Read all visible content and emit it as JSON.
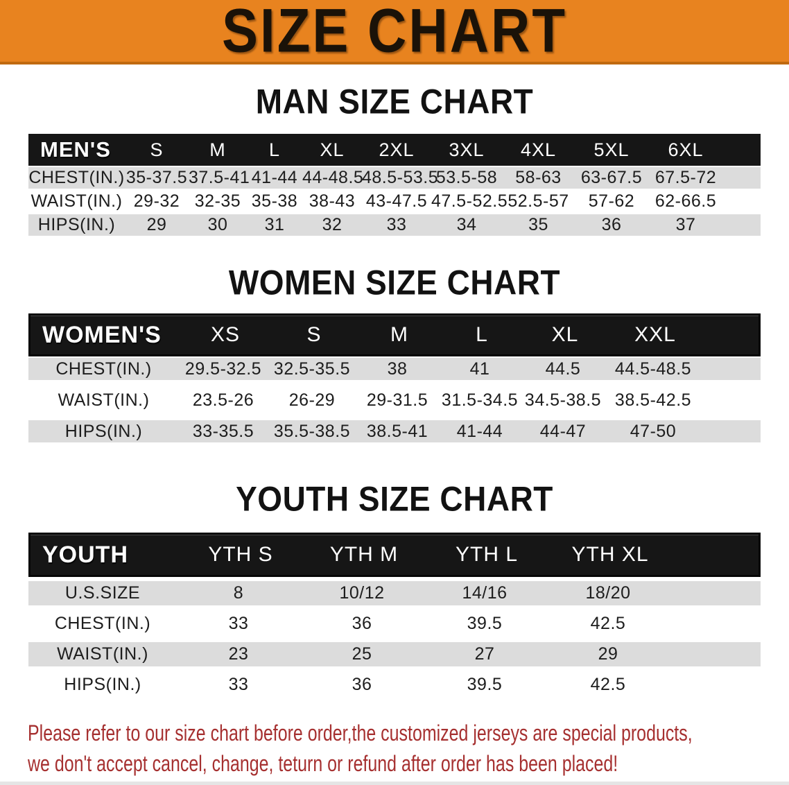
{
  "banner": {
    "title": "SIZE CHART"
  },
  "sections": [
    {
      "heading": "MAN SIZE CHART",
      "table": {
        "header_label": "MEN'S",
        "columns": [
          "S",
          "M",
          "L",
          "XL",
          "2XL",
          "3XL",
          "4XL",
          "5XL",
          "6XL"
        ],
        "rows": [
          {
            "label": "CHEST(IN.)",
            "values": [
              "35-37.5",
              "37.5-41",
              "41-44",
              "44-48.5",
              "48.5-53.5",
              "53.5-58",
              "58-63",
              "63-67.5",
              "67.5-72"
            ]
          },
          {
            "label": "WAIST(IN.)",
            "values": [
              "29-32",
              "32-35",
              "35-38",
              "38-43",
              "43-47.5",
              "47.5-52.5",
              "52.5-57",
              "57-62",
              "62-66.5"
            ]
          },
          {
            "label": "HIPS(IN.)",
            "values": [
              "29",
              "30",
              "31",
              "32",
              "33",
              "34",
              "35",
              "36",
              "37"
            ]
          }
        ]
      }
    },
    {
      "heading": "WOMEN SIZE CHART",
      "table": {
        "header_label": "WOMEN'S",
        "columns": [
          "XS",
          "S",
          "M",
          "L",
          "XL",
          "XXL"
        ],
        "rows": [
          {
            "label": "CHEST(IN.)",
            "values": [
              "29.5-32.5",
              "32.5-35.5",
              "38",
              "41",
              "44.5",
              "44.5-48.5"
            ]
          },
          {
            "label": "WAIST(IN.)",
            "values": [
              "23.5-26",
              "26-29",
              "29-31.5",
              "31.5-34.5",
              "34.5-38.5",
              "38.5-42.5"
            ]
          },
          {
            "label": "HIPS(IN.)",
            "values": [
              "33-35.5",
              "35.5-38.5",
              "38.5-41",
              "41-44",
              "44-47",
              "47-50"
            ]
          }
        ]
      }
    },
    {
      "heading": "YOUTH SIZE CHART",
      "table": {
        "header_label": "YOUTH",
        "columns": [
          "YTH S",
          "YTH M",
          "YTH L",
          "YTH XL"
        ],
        "rows": [
          {
            "label": "U.S.SIZE",
            "values": [
              "8",
              "10/12",
              "14/16",
              "18/20"
            ]
          },
          {
            "label": "CHEST(IN.)",
            "values": [
              "33",
              "36",
              "39.5",
              "42.5"
            ]
          },
          {
            "label": "WAIST(IN.)",
            "values": [
              "23",
              "25",
              "27",
              "29"
            ]
          },
          {
            "label": "HIPS(IN.)",
            "values": [
              "33",
              "36",
              "39.5",
              "42.5"
            ]
          }
        ]
      }
    }
  ],
  "footer": {
    "line1": "Please refer to our size chart before order,the customized jerseys are special products,",
    "line2": "we don't accept cancel, change, teturn or refund after order has been placed!"
  },
  "colors": {
    "banner_bg": "#E8831F",
    "banner_border": "#C06A10",
    "bar_bg": "#161616",
    "row_shade": "#DCDCDC",
    "text_dark": "#1D1D1D",
    "footer_red": "#A63030"
  }
}
